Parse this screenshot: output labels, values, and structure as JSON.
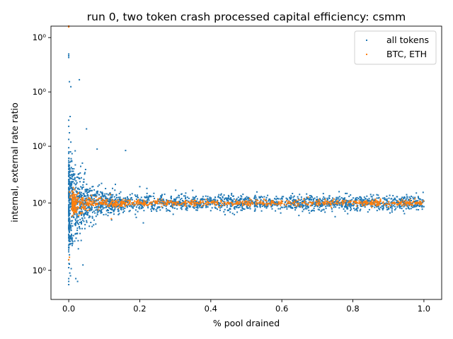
{
  "chart_data": {
    "type": "scatter",
    "title": "run 0, two token crash processed capital efficiency: csmm",
    "xlabel": "% pool drained",
    "ylabel": "internal, external rate ratio",
    "yscale": "log",
    "xlim": [
      -0.05,
      1.05
    ],
    "x_ticks": [
      0.0,
      0.2,
      0.4,
      0.6,
      0.8,
      1.0
    ],
    "x_tick_labels": [
      "0.0",
      "0.2",
      "0.4",
      "0.6",
      "0.8",
      "1.0"
    ],
    "y_ticks": [
      0.7,
      1.0,
      1.35,
      1.8,
      2.4
    ],
    "y_tick_labels": [
      "10⁰",
      "10⁰",
      "10⁰",
      "10⁰",
      "10⁰"
    ],
    "ylim": [
      0.6,
      2.55
    ],
    "grid": false,
    "legend_position": "top-right",
    "series": [
      {
        "name": "all tokens",
        "color": "#1f77b4",
        "points": [
          [
            0.0,
            2.55
          ],
          [
            0.0,
            2.55
          ],
          [
            0.0,
            2.18
          ],
          [
            0.0,
            2.16
          ],
          [
            0.0,
            2.2
          ],
          [
            0.002,
            1.9
          ],
          [
            0.006,
            1.85
          ],
          [
            0.03,
            1.92
          ],
          [
            0.0,
            1.55
          ],
          [
            0.0,
            1.5
          ],
          [
            0.002,
            1.45
          ],
          [
            0.004,
            1.58
          ],
          [
            0.0,
            1.4
          ],
          [
            0.006,
            1.38
          ],
          [
            0.0,
            1.3
          ],
          [
            0.05,
            1.48
          ],
          [
            0.08,
            1.33
          ],
          [
            0.16,
            1.32
          ],
          [
            0.0,
            1.25
          ],
          [
            0.002,
            1.22
          ],
          [
            0.004,
            1.18
          ],
          [
            0.0,
            1.15
          ],
          [
            0.0,
            1.12
          ],
          [
            0.006,
            1.14
          ],
          [
            0.04,
            1.1
          ],
          [
            0.06,
            1.08
          ],
          [
            0.13,
            1.07
          ],
          [
            0.2,
            1.09
          ],
          [
            0.08,
            1.05
          ],
          [
            0.22,
            1.08
          ],
          [
            0.45,
            1.04
          ],
          [
            0.67,
            1.03
          ],
          [
            0.75,
            0.93
          ],
          [
            0.4,
            0.96
          ],
          [
            0.44,
            0.94
          ],
          [
            0.51,
            0.98
          ],
          [
            0.62,
            0.98
          ],
          [
            0.9,
            0.98
          ],
          [
            0.12,
            0.95
          ],
          [
            0.14,
            0.94
          ],
          [
            0.06,
            0.93
          ],
          [
            0.05,
            0.91
          ],
          [
            0.07,
            0.89
          ],
          [
            0.03,
            0.88
          ],
          [
            0.21,
            0.9
          ],
          [
            0.0,
            0.87
          ],
          [
            0.002,
            0.86
          ],
          [
            0.004,
            0.84
          ],
          [
            0.01,
            0.83
          ],
          [
            0.02,
            0.85
          ],
          [
            0.035,
            0.82
          ],
          [
            0.0,
            0.8
          ],
          [
            0.0,
            0.78
          ],
          [
            0.002,
            0.76
          ],
          [
            0.0,
            0.74
          ],
          [
            0.04,
            0.72
          ],
          [
            0.0,
            0.71
          ],
          [
            0.003,
            0.69
          ],
          [
            0.005,
            0.68
          ],
          [
            0.0,
            0.67
          ],
          [
            0.0,
            0.66
          ],
          [
            0.025,
            0.66
          ],
          [
            0.02,
            0.67
          ],
          [
            0.01,
            0.91
          ],
          [
            0.015,
            0.95
          ],
          [
            0.02,
            1.02
          ],
          [
            0.025,
            1.05
          ],
          [
            0.03,
            1.03
          ],
          [
            0.01,
            1.07
          ],
          [
            0.008,
            1.1
          ],
          [
            0.012,
            0.93
          ],
          [
            0.1,
            1.04
          ],
          [
            0.3,
            1.01
          ],
          [
            0.58,
            0.99
          ],
          [
            0.95,
            0.97
          ],
          [
            0.35,
            1.02
          ],
          [
            0.26,
            1.03
          ],
          [
            0.7,
            1.02
          ],
          [
            0.5,
            1.02
          ],
          [
            0.85,
            1.01
          ]
        ],
        "band": {
          "x_from": 0.0,
          "x_to": 1.0,
          "center": 1.0,
          "near_zero_spread": 0.13,
          "far_spread": 0.02,
          "count": 2400
        }
      },
      {
        "name": "BTC, ETH",
        "color": "#ff7f0e",
        "points": [
          [
            0.0,
            2.55
          ],
          [
            0.0,
            2.54
          ],
          [
            0.002,
            1.06
          ],
          [
            0.004,
            1.03
          ],
          [
            0.12,
            0.92
          ],
          [
            0.9,
            0.98
          ],
          [
            0.0,
            0.74
          ],
          [
            0.002,
            0.75
          ],
          [
            0.005,
            1.04
          ],
          [
            0.008,
            0.97
          ]
        ],
        "band": {
          "x_from": 0.01,
          "x_to": 1.0,
          "center": 1.0,
          "near_zero_spread": 0.035,
          "far_spread": 0.008,
          "count": 900
        }
      }
    ]
  }
}
